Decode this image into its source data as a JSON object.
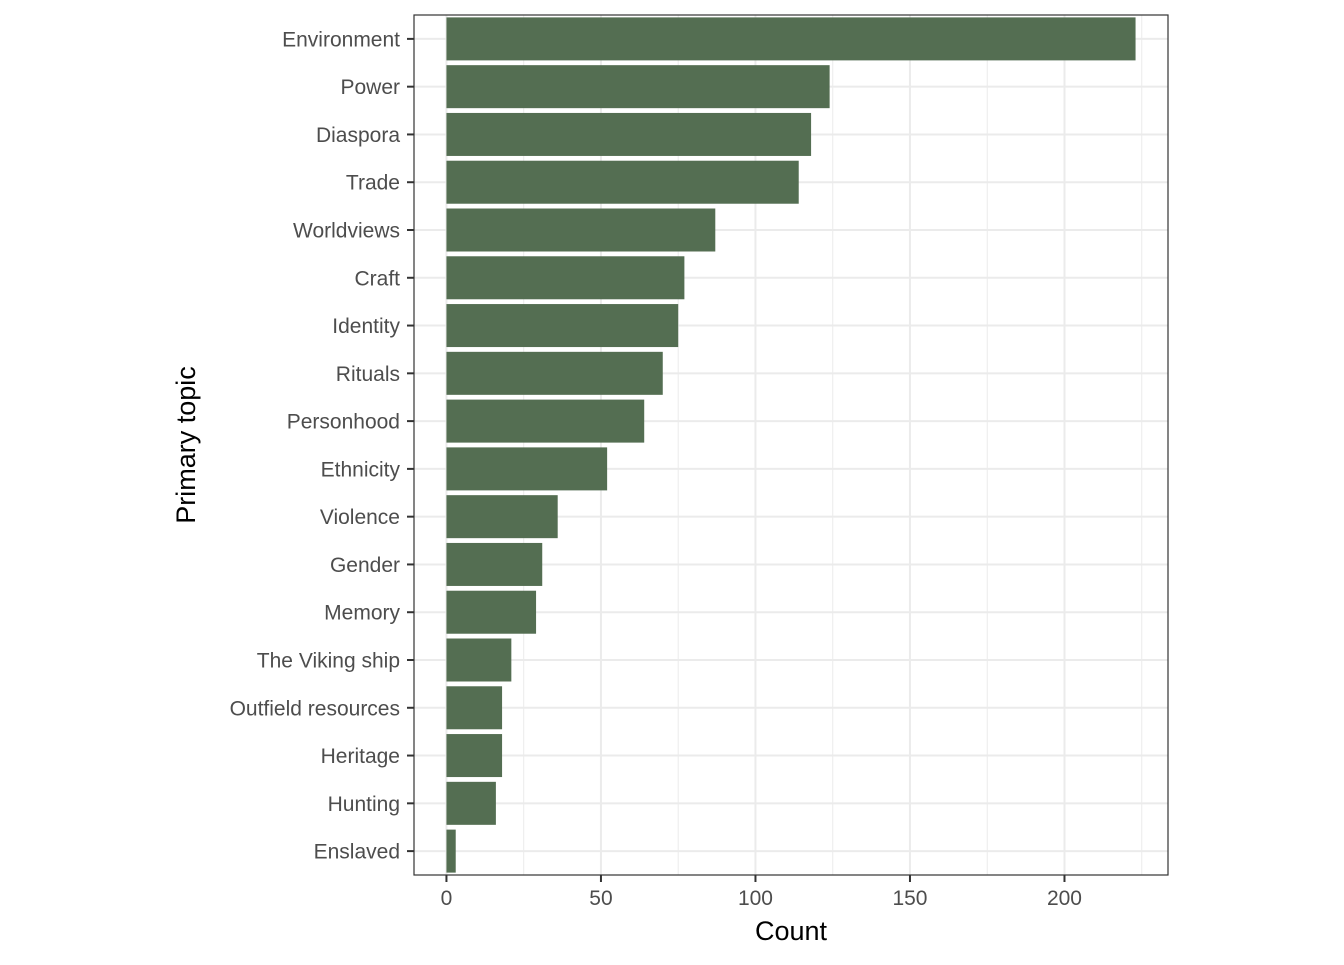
{
  "chart_data": {
    "type": "bar",
    "orientation": "horizontal",
    "xlabel": "Count",
    "ylabel": "Primary topic",
    "xlim": [
      -10.5,
      233.5
    ],
    "x_ticks": [
      0,
      50,
      100,
      150,
      200
    ],
    "grid": true,
    "bar_color": "#546e52",
    "grid_color": "#ebebeb",
    "categories": [
      "Environment",
      "Power",
      "Diaspora",
      "Trade",
      "Worldviews",
      "Craft",
      "Identity",
      "Rituals",
      "Personhood",
      "Ethnicity",
      "Violence",
      "Gender",
      "Memory",
      "The Viking ship",
      "Outfield resources",
      "Heritage",
      "Hunting",
      "Enslaved"
    ],
    "values": [
      223,
      124,
      118,
      114,
      87,
      77,
      75,
      70,
      64,
      52,
      36,
      31,
      29,
      21,
      18,
      18,
      16,
      3
    ]
  }
}
